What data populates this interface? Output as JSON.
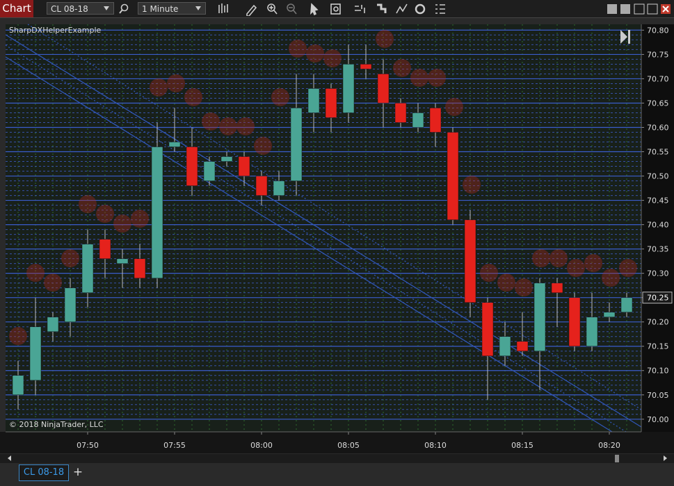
{
  "toolbar": {
    "tab": "Chart",
    "instrument": "CL 08-18",
    "interval": "1 Minute"
  },
  "chart_data": {
    "type": "candlestick",
    "title": "SharpDXHelperExample",
    "annotation": "© 2018 NinjaTrader, LLC",
    "categories": [
      null,
      null,
      null,
      null,
      "07:50",
      null,
      null,
      null,
      null,
      "07:55",
      null,
      null,
      null,
      null,
      "08:00",
      null,
      null,
      null,
      null,
      "08:05",
      null,
      null,
      null,
      null,
      "08:10",
      null,
      null,
      null,
      null,
      "08:15",
      null,
      null,
      null,
      null,
      "08:20",
      null
    ],
    "open": [
      70.05,
      70.08,
      70.18,
      70.2,
      70.26,
      70.37,
      70.32,
      70.33,
      70.29,
      70.56,
      70.56,
      70.49,
      70.53,
      70.54,
      70.5,
      70.46,
      70.49,
      70.63,
      70.68,
      70.63,
      70.73,
      70.71,
      70.65,
      70.6,
      70.64,
      70.59,
      70.41,
      70.24,
      70.13,
      70.16,
      70.14,
      70.28,
      70.25,
      70.15,
      70.21,
      70.22
    ],
    "high": [
      70.12,
      70.25,
      70.22,
      70.29,
      70.39,
      70.39,
      70.35,
      70.36,
      70.61,
      70.64,
      70.6,
      70.54,
      70.55,
      70.55,
      70.51,
      70.51,
      70.71,
      70.71,
      70.69,
      70.77,
      70.77,
      70.74,
      70.66,
      70.65,
      70.65,
      70.6,
      70.43,
      70.25,
      70.2,
      70.22,
      70.29,
      70.29,
      70.26,
      70.26,
      70.24,
      70.26
    ],
    "low": [
      70.02,
      70.05,
      70.16,
      70.17,
      70.23,
      70.29,
      70.27,
      70.27,
      70.27,
      70.55,
      70.46,
      70.48,
      70.52,
      70.48,
      70.44,
      70.45,
      70.46,
      70.59,
      70.59,
      70.61,
      70.7,
      70.6,
      70.6,
      70.59,
      70.56,
      70.4,
      70.21,
      70.04,
      70.11,
      70.13,
      70.06,
      70.19,
      70.14,
      70.14,
      70.2,
      70.21
    ],
    "close": [
      70.09,
      70.19,
      70.21,
      70.27,
      70.36,
      70.33,
      70.33,
      70.29,
      70.56,
      70.57,
      70.48,
      70.53,
      70.54,
      70.5,
      70.46,
      70.49,
      70.64,
      70.68,
      70.62,
      70.73,
      70.72,
      70.65,
      70.61,
      70.63,
      70.59,
      70.41,
      70.24,
      70.13,
      70.17,
      70.14,
      70.28,
      70.26,
      70.15,
      70.21,
      70.22,
      70.25
    ],
    "up_color": "#4aa595",
    "down_color": "#e5221c",
    "ylim": [
      69.974,
      70.812
    ],
    "yticks": [
      {
        "value": 70.0,
        "label": "70.00"
      },
      70.05,
      {
        "value": 70.1,
        "label": "70.10"
      },
      70.15,
      {
        "value": 70.2,
        "label": "70.20"
      },
      70.25,
      {
        "value": 70.3,
        "label": "70.30"
      },
      70.35,
      {
        "value": 70.4,
        "label": "70.40"
      },
      70.45,
      {
        "value": 70.5,
        "label": "70.50"
      },
      70.55,
      {
        "value": 70.6,
        "label": "70.60"
      },
      70.65,
      {
        "value": 70.7,
        "label": "70.70"
      },
      70.75,
      {
        "value": 70.8,
        "label": "70.80"
      }
    ],
    "grid": true
  },
  "tabs": {
    "active": "CL 08-18",
    "add": "+"
  }
}
